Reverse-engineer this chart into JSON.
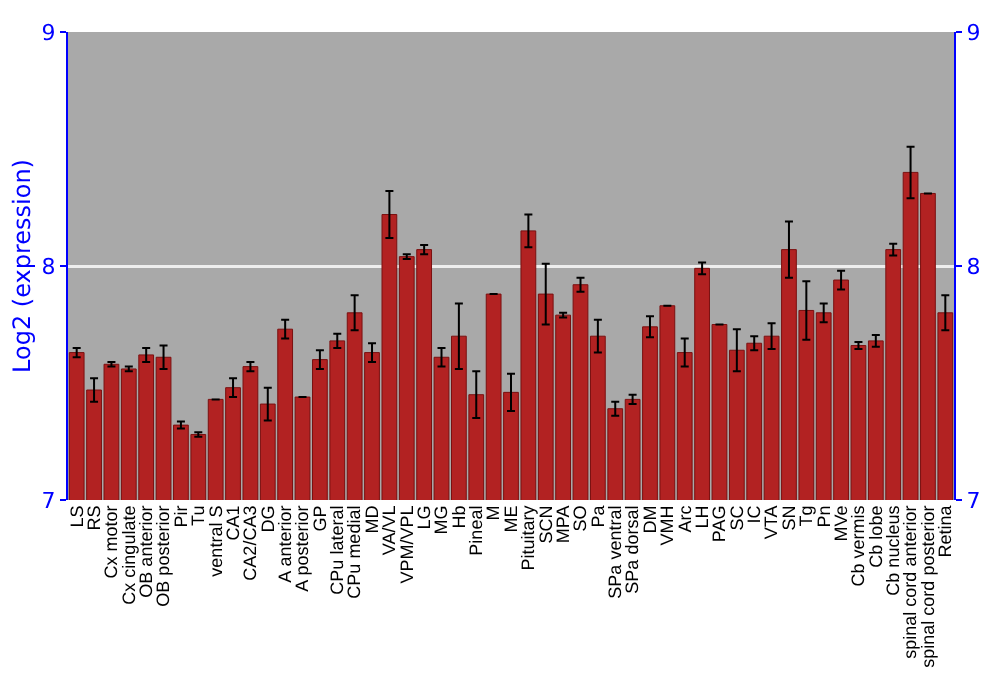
{
  "chart_data": {
    "type": "bar",
    "ylabel": "Log2 (expression)",
    "categories": [
      "LS",
      "RS",
      "Cx motor",
      "Cx cingulate",
      "OB anterior",
      "OB posterior",
      "Pir",
      "Tu",
      "ventral S",
      "CA1",
      "CA2/CA3",
      "DG",
      "A anterior",
      "A posterior",
      "GP",
      "CPu lateral",
      "CPu medial",
      "MD",
      "VA/VL",
      "VPM/VPL",
      "LG",
      "MG",
      "Hb",
      "Pineal",
      "M",
      "ME",
      "Pituitary",
      "SCN",
      "MPA",
      "SO",
      "Pa",
      "SPa ventral",
      "SPa dorsal",
      "DM",
      "VMH",
      "Arc",
      "LH",
      "PAG",
      "SC",
      "IC",
      "VTA",
      "SN",
      "Tg",
      "Pn",
      "MVe",
      "Cb vermis",
      "Cb lobe",
      "Cb nucleus",
      "spinal cord anterior",
      "spinal cord posterior",
      "Retina"
    ],
    "values": [
      7.63,
      7.47,
      7.58,
      7.56,
      7.62,
      7.61,
      7.32,
      7.28,
      7.43,
      7.48,
      7.57,
      7.41,
      7.73,
      7.44,
      7.6,
      7.68,
      7.8,
      7.63,
      8.22,
      8.04,
      8.07,
      7.61,
      7.7,
      7.45,
      7.88,
      7.46,
      8.15,
      7.88,
      7.79,
      7.92,
      7.7,
      7.39,
      7.43,
      7.74,
      7.83,
      7.63,
      7.99,
      7.75,
      7.64,
      7.67,
      7.7,
      8.07,
      7.81,
      7.8,
      7.94,
      7.66,
      7.68,
      8.07,
      8.4,
      8.31,
      7.8
    ],
    "errors": [
      0.02,
      0.05,
      0.01,
      0.01,
      0.03,
      0.05,
      0.015,
      0.01,
      null,
      0.04,
      0.02,
      0.07,
      0.04,
      null,
      0.04,
      0.03,
      0.075,
      0.04,
      0.1,
      0.01,
      0.02,
      0.04,
      0.14,
      0.1,
      null,
      0.08,
      0.07,
      0.13,
      0.01,
      0.03,
      0.07,
      0.03,
      0.02,
      0.045,
      null,
      0.06,
      0.025,
      null,
      0.09,
      0.03,
      0.055,
      0.12,
      0.125,
      0.04,
      0.04,
      0.015,
      0.025,
      0.025,
      0.11,
      null,
      0.075
    ],
    "color": "#b22222",
    "ylim": [
      7,
      9
    ],
    "yticks": [
      7,
      8,
      9
    ],
    "y2lim": [
      7,
      9
    ],
    "y2ticks": [
      7,
      8,
      9
    ],
    "grid": "y"
  }
}
